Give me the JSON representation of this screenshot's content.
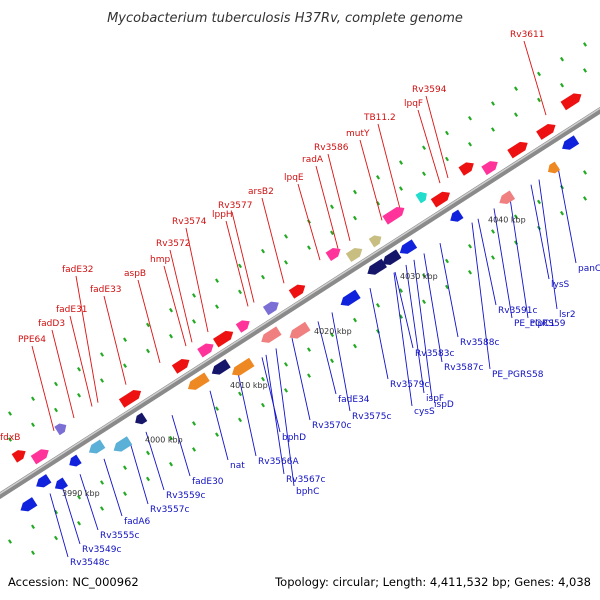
{
  "title": "Mycobacterium tuberculosis H37Rv, complete genome",
  "footer": {
    "accession": "Accession: NC_000962",
    "summary": "Topology: circular; Length: 4,411,532 bp; Genes: 4,038"
  },
  "colors": {
    "forward": "#ee1111",
    "reverse": "#1122dd",
    "backbone": "#888888",
    "top_line": "#dd1111",
    "bottom_line": "#1111cc",
    "dots": "#22aa22"
  },
  "ticks": [
    "3990 kbp",
    "4000 kbp",
    "4010 kbp",
    "4020 kbp",
    "4030 kbp",
    "4040 kbp"
  ],
  "top_labels": [
    "fdxB",
    "PPE64",
    "fadD3",
    "fadE31",
    "fadE32",
    "fadE33",
    "aspB",
    "hmp",
    "Rv3572",
    "Rv3574",
    "lppH",
    "Rv3577",
    "arsB2",
    "lpqE",
    "radA",
    "Rv3586",
    "mutY",
    "TB11.2",
    "lpqF",
    "Rv3594",
    "Rv3611"
  ],
  "bottom_labels": [
    "Rv3548c",
    "Rv3549c",
    "Rv3555c",
    "fadA6",
    "Rv3557c",
    "Rv3559c",
    "fadE30",
    "nat",
    "Rv3566A",
    "Rv3567c",
    "bphC",
    "bphD",
    "Rv3570c",
    "fadE34",
    "Rv3575c",
    "Rv3579c",
    "cysS",
    "ispF",
    "ispD",
    "Rv3583c",
    "Rv3587c",
    "Rv3588c",
    "PE_PGRS58",
    "Rv3591c",
    "PE_PGRS59",
    "clpC1",
    "lsr2",
    "lysS",
    "panC"
  ]
}
